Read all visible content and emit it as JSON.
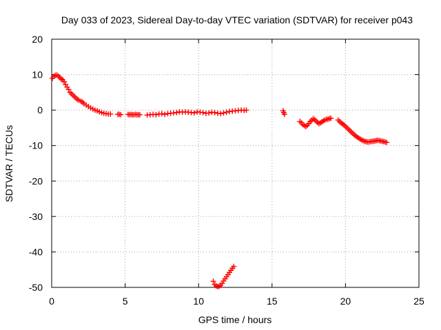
{
  "chart_data": {
    "type": "scatter",
    "title": "Day 033 of 2023, Sidereal Day-to-day VTEC variation (SDTVAR) for receiver p043",
    "xlabel": "GPS time / hours",
    "ylabel": "SDTVAR / TECUs",
    "xlim": [
      0,
      25
    ],
    "ylim": [
      -50,
      20
    ],
    "xticks": [
      0,
      5,
      10,
      15,
      20,
      25
    ],
    "yticks": [
      -50,
      -40,
      -30,
      -20,
      -10,
      0,
      10,
      20
    ],
    "xtick_labels": [
      "0",
      "5",
      "10",
      "15",
      "20",
      "25"
    ],
    "ytick_labels": [
      "-50",
      "-40",
      "-30",
      "-20",
      "-10",
      "0",
      "10",
      "20"
    ],
    "grid": true,
    "legend": "none",
    "marker": "plus",
    "color": "#ff0000",
    "series": [
      {
        "name": "SDTVAR",
        "x": [
          0.05,
          0.15,
          0.25,
          0.35,
          0.45,
          0.55,
          0.65,
          0.75,
          0.85,
          0.95,
          1.05,
          1.15,
          1.25,
          1.35,
          1.45,
          1.55,
          1.65,
          1.75,
          1.85,
          2.0,
          2.1,
          2.2,
          2.35,
          2.5,
          2.65,
          2.8,
          2.95,
          3.1,
          3.25,
          3.4,
          3.55,
          3.7,
          3.85,
          4.0,
          4.5,
          4.6,
          4.7,
          5.2,
          5.3,
          5.4,
          5.5,
          5.6,
          5.7,
          5.8,
          5.9,
          6.0,
          6.5,
          6.7,
          6.9,
          7.1,
          7.3,
          7.5,
          7.7,
          7.9,
          8.1,
          8.3,
          8.5,
          8.7,
          8.9,
          9.1,
          9.3,
          9.5,
          9.7,
          9.9,
          10.1,
          10.3,
          10.5,
          10.7,
          10.9,
          11.1,
          11.3,
          11.5,
          11.7,
          11.9,
          12.1,
          12.3,
          12.5,
          12.7,
          12.9,
          13.1,
          13.25,
          11.0,
          11.1,
          11.2,
          11.3,
          11.4,
          11.5,
          11.6,
          11.7,
          11.8,
          11.9,
          12.0,
          12.1,
          12.2,
          12.3,
          12.4,
          15.75,
          15.8,
          15.85,
          16.9,
          17.0,
          17.1,
          17.2,
          17.3,
          17.4,
          17.5,
          17.6,
          17.7,
          17.8,
          17.9,
          18.0,
          18.1,
          18.2,
          18.3,
          18.4,
          18.5,
          18.6,
          18.7,
          18.8,
          18.9,
          19.0,
          19.5,
          19.6,
          19.7,
          19.8,
          19.9,
          20.0,
          20.1,
          20.2,
          20.3,
          20.4,
          20.5,
          20.6,
          20.7,
          20.8,
          20.9,
          21.0,
          21.1,
          21.2,
          21.3,
          21.4,
          21.5,
          21.6,
          21.7,
          21.8,
          21.9,
          22.0,
          22.1,
          22.2,
          22.3,
          22.4,
          22.5,
          22.6,
          22.7,
          22.8
        ],
        "y": [
          9.0,
          9.5,
          9.8,
          9.9,
          9.6,
          9.2,
          8.8,
          8.5,
          8.0,
          7.2,
          6.5,
          5.8,
          5.0,
          4.6,
          4.2,
          3.8,
          3.4,
          3.0,
          2.8,
          2.5,
          2.2,
          1.8,
          1.4,
          1.0,
          0.6,
          0.3,
          0.0,
          -0.2,
          -0.5,
          -0.7,
          -0.9,
          -1.0,
          -1.1,
          -1.1,
          -1.2,
          -1.2,
          -1.3,
          -1.2,
          -1.3,
          -1.2,
          -1.3,
          -1.3,
          -1.2,
          -1.3,
          -1.3,
          -1.3,
          -1.4,
          -1.3,
          -1.2,
          -1.3,
          -1.1,
          -1.0,
          -1.2,
          -1.0,
          -0.9,
          -0.8,
          -0.7,
          -0.5,
          -0.6,
          -0.5,
          -0.6,
          -0.7,
          -0.8,
          -0.5,
          -0.6,
          -0.7,
          -0.9,
          -0.8,
          -0.6,
          -0.7,
          -0.9,
          -1.0,
          -0.8,
          -0.6,
          -0.4,
          -0.3,
          -0.2,
          -0.1,
          0.0,
          -0.1,
          0.0,
          -48.3,
          -49.2,
          -49.6,
          -49.8,
          -49.7,
          -49.4,
          -48.9,
          -48.2,
          -47.6,
          -47.0,
          -46.4,
          -45.8,
          -45.2,
          -44.6,
          -44.1,
          -0.2,
          -0.7,
          -1.2,
          -3.2,
          -3.6,
          -4.1,
          -4.4,
          -4.6,
          -4.3,
          -3.8,
          -3.2,
          -2.9,
          -2.4,
          -2.7,
          -3.1,
          -3.5,
          -3.8,
          -3.6,
          -3.3,
          -3.0,
          -2.8,
          -2.6,
          -2.6,
          -2.4,
          -2.3,
          -2.8,
          -3.2,
          -3.6,
          -3.9,
          -4.2,
          -4.6,
          -5.0,
          -5.4,
          -5.8,
          -6.2,
          -6.6,
          -7.0,
          -7.3,
          -7.6,
          -7.9,
          -8.2,
          -8.4,
          -8.6,
          -8.8,
          -8.9,
          -9.0,
          -9.0,
          -8.9,
          -8.8,
          -8.8,
          -8.7,
          -8.6,
          -8.5,
          -8.6,
          -8.7,
          -8.8,
          -8.9,
          -9.0,
          -9.1
        ]
      }
    ]
  }
}
